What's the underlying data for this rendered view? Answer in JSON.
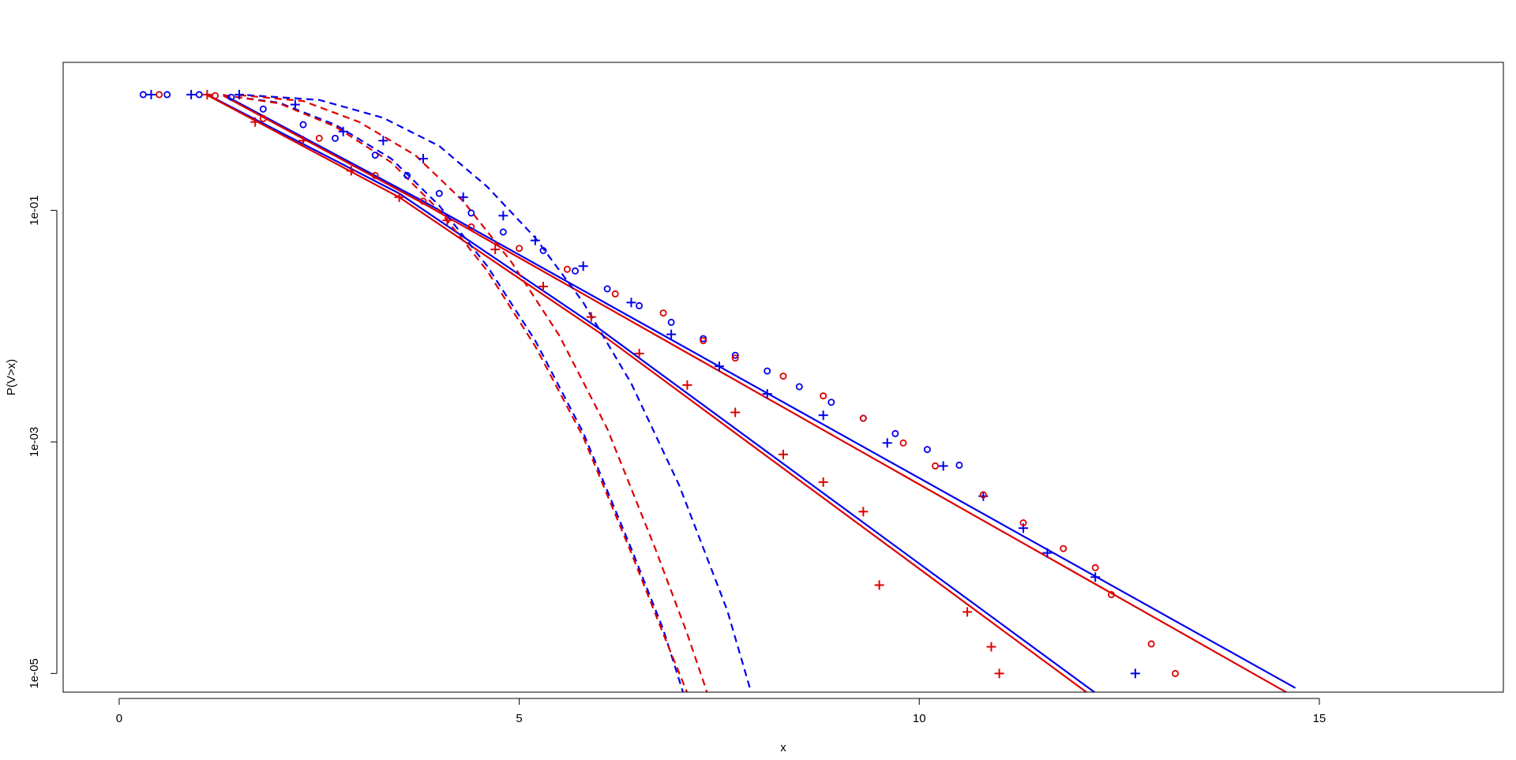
{
  "chart_data": {
    "type": "scatter",
    "title": "",
    "xlabel": "x",
    "ylabel": "P(V>x)",
    "xlim": [
      -0.7,
      17.3
    ],
    "ylim": [
      6.9e-06,
      1.9
    ],
    "y_scale": "log",
    "grid": false,
    "legend": "none",
    "x_ticks": [
      0,
      5,
      10,
      15
    ],
    "x_tick_labels": [
      "0",
      "5",
      "10",
      "15"
    ],
    "y_ticks": [
      0.1,
      0.001,
      1e-05
    ],
    "y_tick_labels": [
      "1e-01",
      "1e-03",
      "1e-05"
    ],
    "colors": {
      "blue": "#0000ee",
      "red": "#dd0000",
      "axis": "#000000"
    },
    "series": [
      {
        "color": "#0000ee",
        "marker": "circle",
        "points": [
          [
            0.3,
            1.0
          ],
          [
            0.6,
            1.0
          ],
          [
            1.0,
            1.0
          ],
          [
            1.4,
            0.95
          ],
          [
            1.8,
            0.75
          ],
          [
            2.3,
            0.55
          ],
          [
            2.7,
            0.42
          ],
          [
            3.2,
            0.3
          ],
          [
            3.6,
            0.2
          ],
          [
            4.0,
            0.14
          ],
          [
            4.4,
            0.095
          ],
          [
            4.8,
            0.065
          ],
          [
            5.3,
            0.045
          ],
          [
            5.7,
            0.03
          ],
          [
            6.1,
            0.021
          ],
          [
            6.5,
            0.015
          ],
          [
            6.9,
            0.0108
          ],
          [
            7.3,
            0.0078
          ],
          [
            7.7,
            0.0056
          ],
          [
            8.1,
            0.0041
          ],
          [
            8.5,
            0.003
          ],
          [
            8.9,
            0.0022
          ],
          [
            9.3,
            0.0016
          ],
          [
            9.7,
            0.00118
          ],
          [
            10.1,
            0.00086
          ],
          [
            10.5,
            0.00063
          ]
        ]
      },
      {
        "color": "#0000ee",
        "marker": "plus",
        "points": [
          [
            0.4,
            1.0
          ],
          [
            0.9,
            1.0
          ],
          [
            1.5,
            1.0
          ],
          [
            2.2,
            0.82
          ],
          [
            2.8,
            0.48
          ],
          [
            3.3,
            0.4
          ],
          [
            3.8,
            0.28
          ],
          [
            4.3,
            0.13
          ],
          [
            4.8,
            0.09
          ],
          [
            5.2,
            0.055
          ],
          [
            5.8,
            0.033
          ],
          [
            6.4,
            0.016
          ],
          [
            6.9,
            0.0085
          ],
          [
            7.5,
            0.0045
          ],
          [
            8.1,
            0.0026
          ],
          [
            8.8,
            0.0017
          ],
          [
            9.6,
            0.00098
          ],
          [
            10.3,
            0.00062
          ],
          [
            10.8,
            0.00034
          ],
          [
            11.3,
            0.00018
          ],
          [
            11.6,
            0.00011
          ],
          [
            12.2,
            6.8e-05
          ],
          [
            12.7,
            1e-05
          ]
        ]
      },
      {
        "color": "#dd0000",
        "marker": "circle",
        "points": [
          [
            0.5,
            1.0
          ],
          [
            1.2,
            0.98
          ],
          [
            1.8,
            0.62
          ],
          [
            2.5,
            0.42
          ],
          [
            3.2,
            0.2
          ],
          [
            3.8,
            0.12
          ],
          [
            4.4,
            0.072
          ],
          [
            5.0,
            0.047
          ],
          [
            5.6,
            0.031
          ],
          [
            6.2,
            0.019
          ],
          [
            6.8,
            0.013
          ],
          [
            7.3,
            0.0075
          ],
          [
            7.7,
            0.0053
          ],
          [
            8.3,
            0.0037
          ],
          [
            8.8,
            0.0025
          ],
          [
            9.3,
            0.0016
          ],
          [
            9.8,
            0.00098
          ],
          [
            10.2,
            0.00062
          ],
          [
            10.8,
            0.00035
          ],
          [
            11.3,
            0.0002
          ],
          [
            11.8,
            0.00012
          ],
          [
            12.2,
            8.2e-05
          ],
          [
            12.4,
            4.8e-05
          ],
          [
            12.9,
            1.8e-05
          ],
          [
            13.2,
            1e-05
          ]
        ]
      },
      {
        "color": "#dd0000",
        "marker": "plus",
        "points": [
          [
            1.1,
            1.0
          ],
          [
            1.7,
            0.58
          ],
          [
            2.3,
            0.4
          ],
          [
            2.9,
            0.22
          ],
          [
            3.5,
            0.13
          ],
          [
            4.1,
            0.082
          ],
          [
            4.7,
            0.046
          ],
          [
            5.3,
            0.022
          ],
          [
            5.9,
            0.012
          ],
          [
            6.5,
            0.0058
          ],
          [
            7.1,
            0.0031
          ],
          [
            7.7,
            0.0018
          ],
          [
            8.3,
            0.00078
          ],
          [
            8.8,
            0.00045
          ],
          [
            9.3,
            0.00025
          ],
          [
            9.5,
            5.8e-05
          ],
          [
            10.6,
            3.4e-05
          ],
          [
            10.9,
            1.7e-05
          ],
          [
            11.0,
            1e-05
          ]
        ]
      }
    ],
    "lines": [
      {
        "color": "#0000ee",
        "style": "solid",
        "points": [
          [
            1.3,
            1.0
          ],
          [
            3.8,
            0.12
          ],
          [
            14.7,
            7.5e-06
          ]
        ]
      },
      {
        "color": "#dd0000",
        "style": "solid",
        "points": [
          [
            1.3,
            0.98
          ],
          [
            3.8,
            0.115
          ],
          [
            14.6,
            6.8e-06
          ]
        ]
      },
      {
        "color": "#0000ee",
        "style": "solid",
        "points": [
          [
            1.1,
            1.0
          ],
          [
            3.5,
            0.14
          ],
          [
            6.0,
            0.0095
          ],
          [
            12.2,
            6.8e-06
          ]
        ]
      },
      {
        "color": "#dd0000",
        "style": "solid",
        "points": [
          [
            1.1,
            0.99
          ],
          [
            3.5,
            0.13
          ],
          [
            6.0,
            0.0088
          ],
          [
            12.1,
            6.8e-06
          ]
        ]
      },
      {
        "color": "#0000ee",
        "style": "dashed",
        "points": [
          [
            1.6,
            0.99
          ],
          [
            2.5,
            0.9
          ],
          [
            3.3,
            0.63
          ],
          [
            4.0,
            0.36
          ],
          [
            4.6,
            0.16
          ],
          [
            5.2,
            0.058
          ],
          [
            5.8,
            0.016
          ],
          [
            6.4,
            0.0032
          ],
          [
            7.0,
            0.00042
          ],
          [
            7.6,
            3.5e-05
          ],
          [
            7.9,
            6.8e-06
          ]
        ]
      },
      {
        "color": "#dd0000",
        "style": "dashed",
        "points": [
          [
            1.5,
            0.99
          ],
          [
            2.3,
            0.88
          ],
          [
            3.0,
            0.58
          ],
          [
            3.7,
            0.3
          ],
          [
            4.3,
            0.12
          ],
          [
            4.9,
            0.036
          ],
          [
            5.5,
            0.0083
          ],
          [
            6.1,
            0.0013
          ],
          [
            6.7,
            0.00012
          ],
          [
            7.1,
            2.2e-05
          ],
          [
            7.35,
            6.8e-06
          ]
        ]
      },
      {
        "color": "#0000ee",
        "style": "dashed",
        "points": [
          [
            1.3,
            0.99
          ],
          [
            2.0,
            0.85
          ],
          [
            2.7,
            0.55
          ],
          [
            3.4,
            0.28
          ],
          [
            4.0,
            0.11
          ],
          [
            4.6,
            0.033
          ],
          [
            5.2,
            0.0075
          ],
          [
            5.8,
            0.0012
          ],
          [
            6.4,
            0.00012
          ],
          [
            6.8,
            2.4e-05
          ],
          [
            7.05,
            6.8e-06
          ]
        ]
      },
      {
        "color": "#dd0000",
        "style": "dashed",
        "points": [
          [
            1.3,
            0.99
          ],
          [
            2.0,
            0.84
          ],
          [
            2.7,
            0.53
          ],
          [
            3.4,
            0.26
          ],
          [
            4.0,
            0.1
          ],
          [
            4.6,
            0.03
          ],
          [
            5.2,
            0.0067
          ],
          [
            5.8,
            0.0011
          ],
          [
            6.4,
            0.00011
          ],
          [
            6.8,
            2.2e-05
          ],
          [
            7.1,
            6.8e-06
          ]
        ]
      }
    ]
  }
}
